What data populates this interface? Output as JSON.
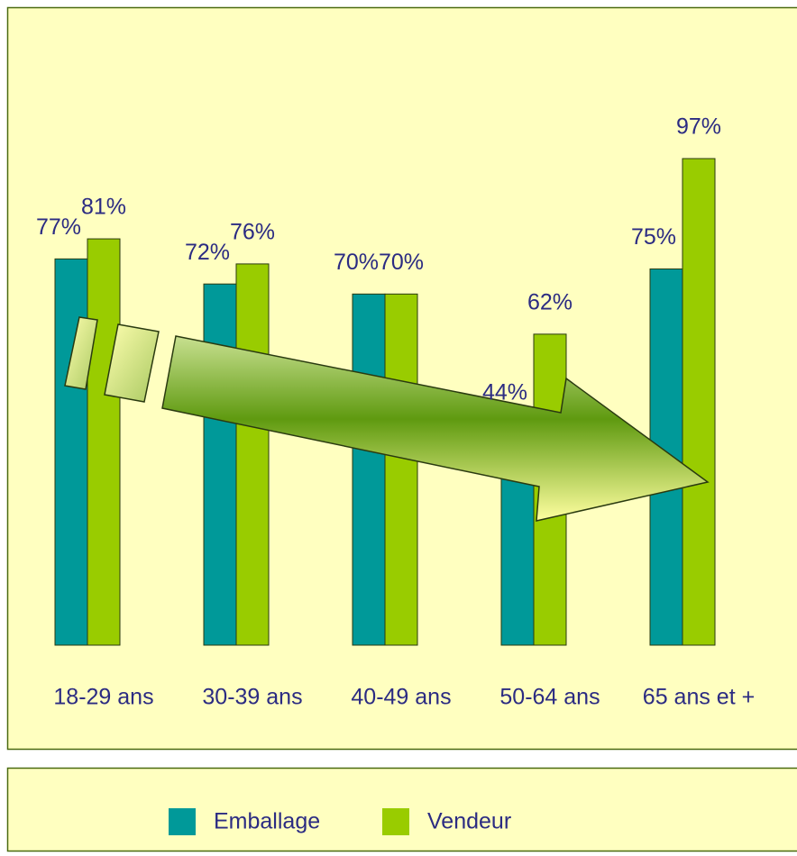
{
  "chart_data": {
    "type": "bar",
    "categories": [
      "18-29 ans",
      "30-39 ans",
      "40-49 ans",
      "50-64 ans",
      "65 ans et +"
    ],
    "series": [
      {
        "name": "Emballage",
        "color": "#009999",
        "values": [
          77,
          72,
          70,
          44,
          75
        ],
        "value_labels": [
          "77%",
          "72%",
          "70%",
          "44%",
          "75%"
        ]
      },
      {
        "name": "Vendeur",
        "color": "#99cc00",
        "values": [
          81,
          76,
          70,
          62,
          97
        ],
        "value_labels": [
          "81%",
          "76%",
          "70%",
          "62%",
          "97%"
        ]
      }
    ],
    "legend": "bottom"
  }
}
